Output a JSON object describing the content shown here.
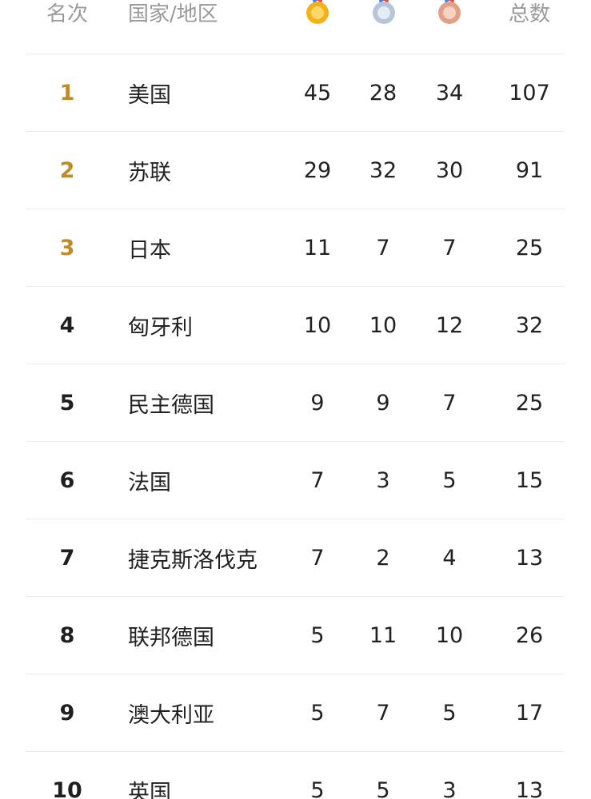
{
  "header": {
    "rank_label": "名次",
    "country_label": "国家/地区",
    "gold_icon": "gold-medal-icon",
    "silver_icon": "silver-medal-icon",
    "bronze_icon": "bronze-medal-icon",
    "total_label": "总数"
  },
  "colors": {
    "top_rank": "#c08a2a",
    "normal_rank": "#1f1f1f",
    "divider": "#ececec",
    "header_text": "#9a9a9a",
    "gold": "#f4b21a",
    "silver": "#c7d3e0",
    "bronze": "#e5a98d"
  },
  "rows": [
    {
      "rank": "1",
      "country": "美国",
      "gold": "45",
      "silver": "28",
      "bronze": "34",
      "total": "107"
    },
    {
      "rank": "2",
      "country": "苏联",
      "gold": "29",
      "silver": "32",
      "bronze": "30",
      "total": "91"
    },
    {
      "rank": "3",
      "country": "日本",
      "gold": "11",
      "silver": "7",
      "bronze": "7",
      "total": "25"
    },
    {
      "rank": "4",
      "country": "匈牙利",
      "gold": "10",
      "silver": "10",
      "bronze": "12",
      "total": "32"
    },
    {
      "rank": "5",
      "country": "民主德国",
      "gold": "9",
      "silver": "9",
      "bronze": "7",
      "total": "25"
    },
    {
      "rank": "6",
      "country": "法国",
      "gold": "7",
      "silver": "3",
      "bronze": "5",
      "total": "15"
    },
    {
      "rank": "7",
      "country": "捷克斯洛伐克",
      "gold": "7",
      "silver": "2",
      "bronze": "4",
      "total": "13"
    },
    {
      "rank": "8",
      "country": "联邦德国",
      "gold": "5",
      "silver": "11",
      "bronze": "10",
      "total": "26"
    },
    {
      "rank": "9",
      "country": "澳大利亚",
      "gold": "5",
      "silver": "7",
      "bronze": "5",
      "total": "17"
    },
    {
      "rank": "10",
      "country": "英国",
      "gold": "5",
      "silver": "5",
      "bronze": "3",
      "total": "13"
    }
  ]
}
